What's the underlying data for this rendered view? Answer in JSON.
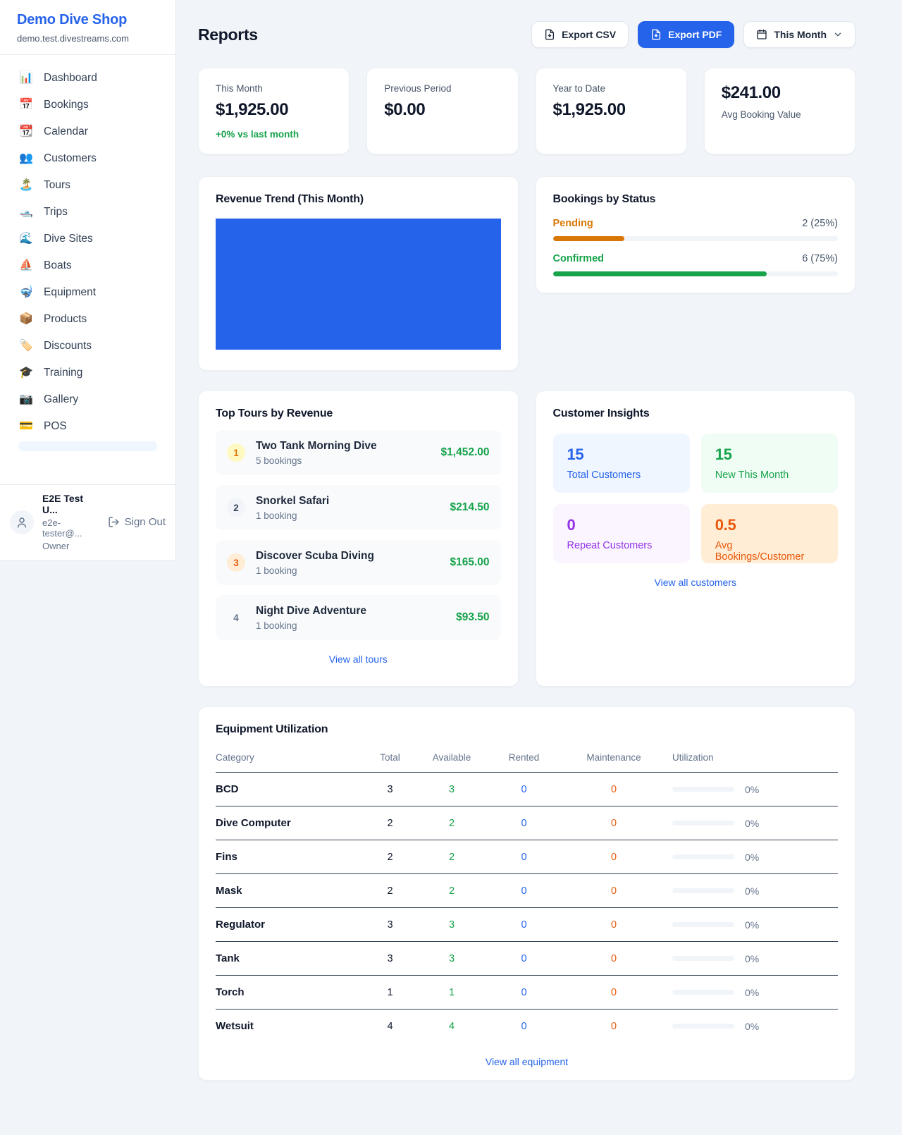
{
  "colors": {
    "accent_blue": "#2563eb",
    "green": "#16a34a",
    "pending_orange": "#d97706",
    "deep_orange": "#ea580c",
    "purple": "#9333ea",
    "text_dark": "#0f172a",
    "text_gray": "#64748b"
  },
  "sidebar": {
    "brand": {
      "name": "Demo Dive Shop",
      "domain": "demo.test.divestreams.com"
    },
    "items": [
      {
        "icon": "📊",
        "label": "Dashboard"
      },
      {
        "icon": "📅",
        "label": "Bookings"
      },
      {
        "icon": "📆",
        "label": "Calendar"
      },
      {
        "icon": "👥",
        "label": "Customers"
      },
      {
        "icon": "🏝️",
        "label": "Tours"
      },
      {
        "icon": "🛥️",
        "label": "Trips"
      },
      {
        "icon": "🌊",
        "label": "Dive Sites"
      },
      {
        "icon": "⛵",
        "label": "Boats"
      },
      {
        "icon": "🤿",
        "label": "Equipment"
      },
      {
        "icon": "📦",
        "label": "Products"
      },
      {
        "icon": "🏷️",
        "label": "Discounts"
      },
      {
        "icon": "🎓",
        "label": "Training"
      },
      {
        "icon": "📷",
        "label": "Gallery"
      },
      {
        "icon": "💳",
        "label": "POS"
      }
    ],
    "user": {
      "name": "E2E Test U...",
      "email": "e2e-tester@...",
      "role": "Owner",
      "signout_label": "Sign Out"
    }
  },
  "header": {
    "title": "Reports",
    "export_csv_label": "Export CSV",
    "export_pdf_label": "Export PDF",
    "period_label": "This Month"
  },
  "stats": {
    "this_month": {
      "label": "This Month",
      "value": "$1,925.00",
      "delta": "+0% vs last month"
    },
    "previous_period": {
      "label": "Previous Period",
      "value": "$0.00"
    },
    "year_to_date": {
      "label": "Year to Date",
      "value": "$1,925.00"
    },
    "avg_booking": {
      "value": "$241.00",
      "label": "Avg Booking Value"
    }
  },
  "revenue_trend": {
    "title": "Revenue Trend (This Month)",
    "chart_data": {
      "type": "bar",
      "categories": [
        "This Month"
      ],
      "values": [
        1925.0
      ],
      "note": "single full-width solid blue bar, no axes or labels visible",
      "bar_color": "#2563eb"
    }
  },
  "bookings_status": {
    "title": "Bookings by Status",
    "rows": [
      {
        "label": "Pending",
        "value": "2 (25%)",
        "percent": 25
      },
      {
        "label": "Confirmed",
        "value": "6 (75%)",
        "percent": 75
      }
    ]
  },
  "top_tours": {
    "title": "Top Tours by Revenue",
    "rows": [
      {
        "rank": "1",
        "name": "Two Tank Morning Dive",
        "bookings": "5 bookings",
        "revenue": "$1,452.00"
      },
      {
        "rank": "2",
        "name": "Snorkel Safari",
        "bookings": "1 booking",
        "revenue": "$214.50"
      },
      {
        "rank": "3",
        "name": "Discover Scuba Diving",
        "bookings": "1 booking",
        "revenue": "$165.00"
      },
      {
        "rank": "4",
        "name": "Night Dive Adventure",
        "bookings": "1 booking",
        "revenue": "$93.50"
      }
    ],
    "view_all": "View all tours"
  },
  "customer_insights": {
    "title": "Customer Insights",
    "tiles": [
      {
        "value": "15",
        "label": "Total Customers"
      },
      {
        "value": "15",
        "label": "New This Month"
      },
      {
        "value": "0",
        "label": "Repeat Customers"
      },
      {
        "value": "0.5",
        "label": "Avg Bookings/Customer"
      }
    ],
    "view_all": "View all customers"
  },
  "equipment": {
    "title": "Equipment Utilization",
    "columns": [
      "Category",
      "Total",
      "Available",
      "Rented",
      "Maintenance",
      "Utilization"
    ],
    "rows": [
      {
        "category": "BCD",
        "total": "3",
        "available": "3",
        "rented": "0",
        "maintenance": "0",
        "utilization": "0%",
        "utilization_percent": 0
      },
      {
        "category": "Dive Computer",
        "total": "2",
        "available": "2",
        "rented": "0",
        "maintenance": "0",
        "utilization": "0%",
        "utilization_percent": 0
      },
      {
        "category": "Fins",
        "total": "2",
        "available": "2",
        "rented": "0",
        "maintenance": "0",
        "utilization": "0%",
        "utilization_percent": 0
      },
      {
        "category": "Mask",
        "total": "2",
        "available": "2",
        "rented": "0",
        "maintenance": "0",
        "utilization": "0%",
        "utilization_percent": 0
      },
      {
        "category": "Regulator",
        "total": "3",
        "available": "3",
        "rented": "0",
        "maintenance": "0",
        "utilization": "0%",
        "utilization_percent": 0
      },
      {
        "category": "Tank",
        "total": "3",
        "available": "3",
        "rented": "0",
        "maintenance": "0",
        "utilization": "0%",
        "utilization_percent": 0
      },
      {
        "category": "Torch",
        "total": "1",
        "available": "1",
        "rented": "0",
        "maintenance": "0",
        "utilization": "0%",
        "utilization_percent": 0
      },
      {
        "category": "Wetsuit",
        "total": "4",
        "available": "4",
        "rented": "0",
        "maintenance": "0",
        "utilization": "0%",
        "utilization_percent": 0
      }
    ],
    "view_all": "View all equipment"
  }
}
